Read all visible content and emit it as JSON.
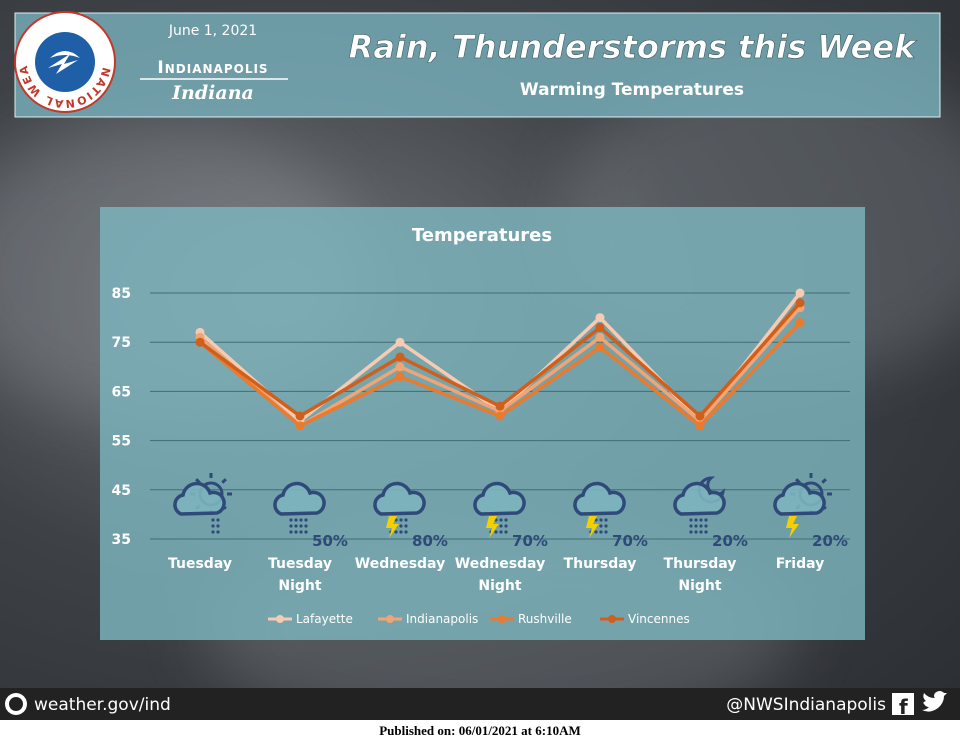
{
  "header": {
    "date": "June 1, 2021",
    "city": "Indianapolis",
    "state": "Indiana",
    "logo_text": "NATIONAL WEATHER SERVICE",
    "title": "Rain, Thunderstorms this Week",
    "subtitle": "Warming Temperatures"
  },
  "chart_data": {
    "type": "line",
    "title": "Temperatures",
    "categories": [
      "Tuesday",
      "Tuesday Night",
      "Wednesday",
      "Wednesday Night",
      "Thursday",
      "Thursday Night",
      "Friday"
    ],
    "precip_labels": [
      null,
      "50%",
      "80%",
      "70%",
      "70%",
      "20%",
      "20%"
    ],
    "series": [
      {
        "name": "Lafayette",
        "color": "#f5cbb3",
        "values": [
          77,
          59,
          75,
          61,
          80,
          59,
          85
        ]
      },
      {
        "name": "Indianapolis",
        "color": "#f2a472",
        "values": [
          76,
          58,
          70,
          61,
          76,
          59,
          82
        ]
      },
      {
        "name": "Rushville",
        "color": "#ea7a2e",
        "values": [
          75,
          58,
          68,
          60,
          74,
          58,
          79
        ]
      },
      {
        "name": "Vincennes",
        "color": "#cf5f1b",
        "values": [
          75,
          60,
          72,
          62,
          78,
          60,
          83
        ]
      }
    ],
    "ylim": [
      35,
      85
    ],
    "yticks": [
      35,
      45,
      55,
      65,
      75,
      85
    ],
    "grid": true,
    "legend": "bottom"
  },
  "footer": {
    "website": "weather.gov/ind",
    "social": "@NWSIndianapolis",
    "published": "Published on: 06/01/2021 at 6:10AM"
  }
}
